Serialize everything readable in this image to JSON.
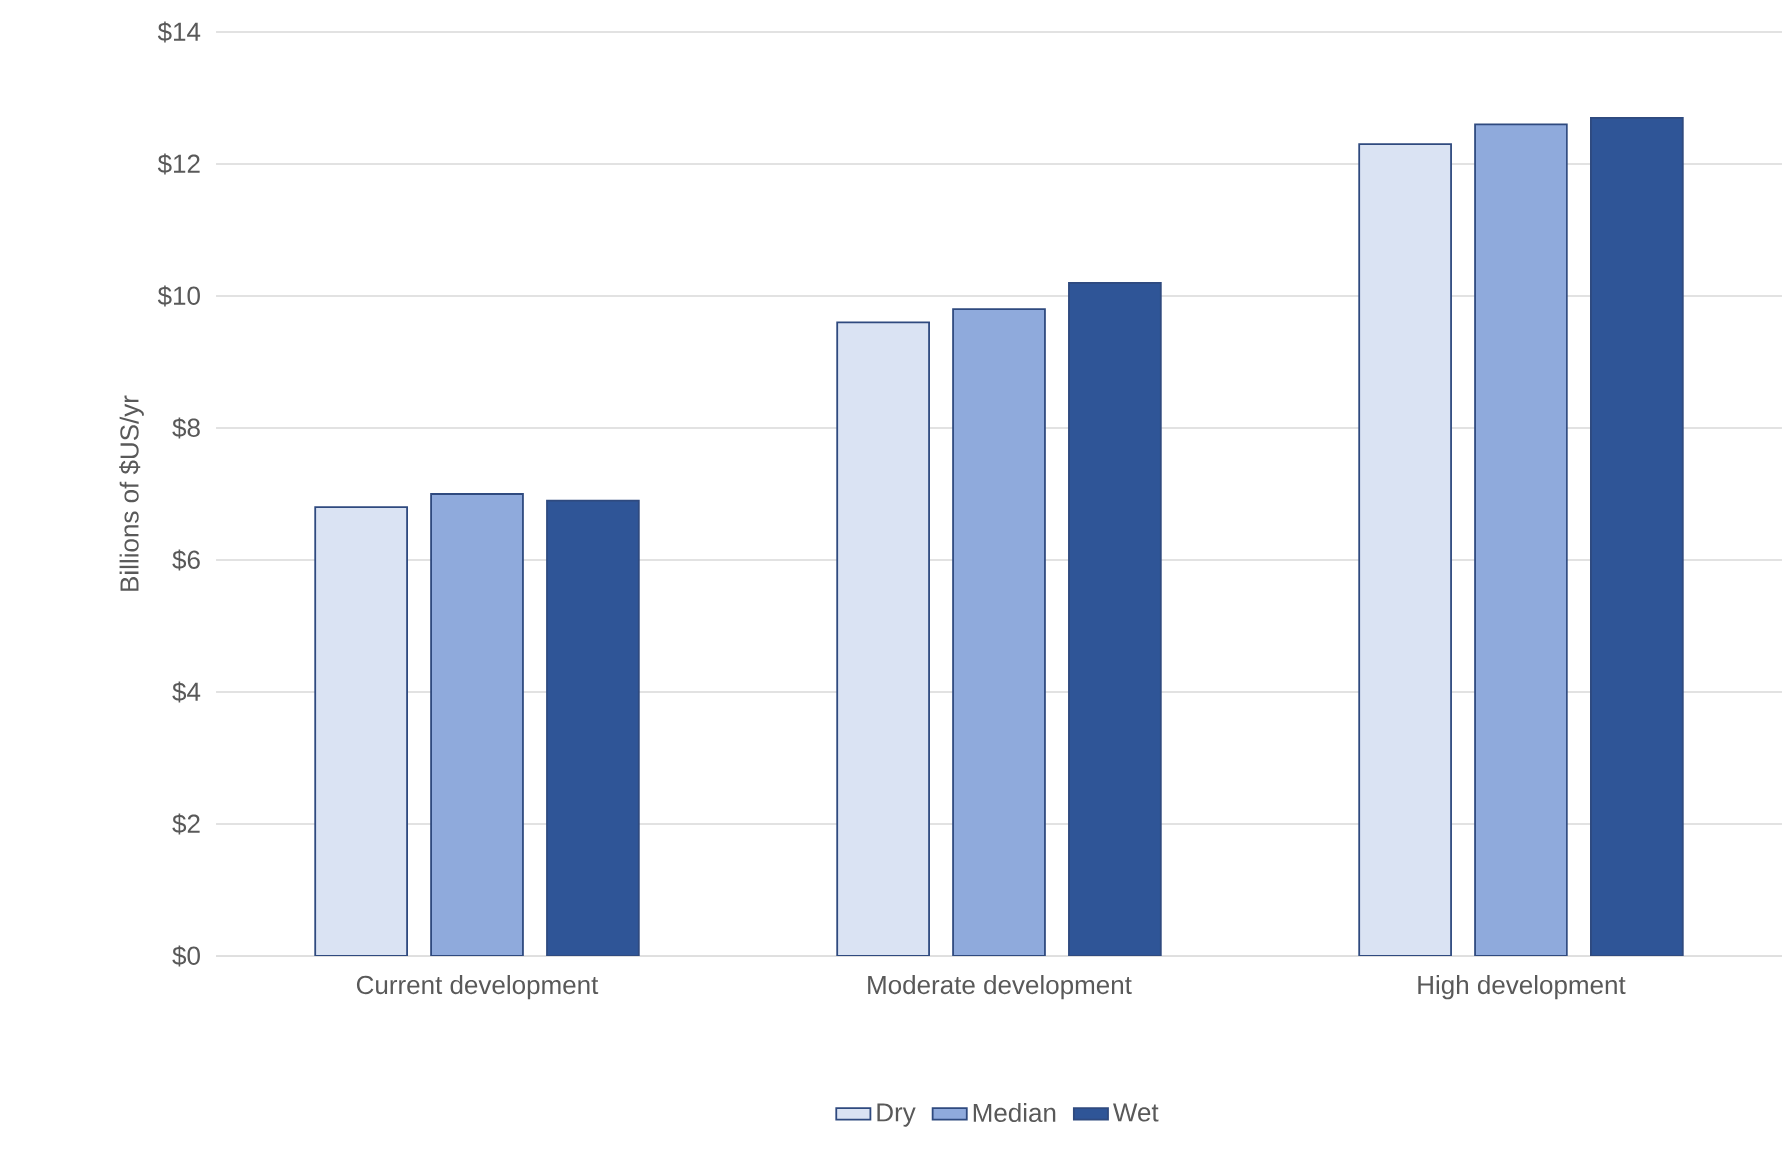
{
  "chart_data": {
    "type": "bar",
    "ylabel": "Billions of $US/yr",
    "categories": [
      "Current development",
      "Moderate development",
      "High development"
    ],
    "series": [
      {
        "name": "Dry",
        "color": "#dae3f3",
        "values": [
          6.8,
          9.6,
          12.3
        ]
      },
      {
        "name": "Median",
        "color": "#8faadc",
        "values": [
          7.0,
          9.8,
          12.6
        ]
      },
      {
        "name": "Wet",
        "color": "#2f5597",
        "values": [
          6.9,
          10.2,
          12.7
        ]
      }
    ],
    "ylim": [
      0,
      14
    ],
    "yticks": [
      {
        "value": 0,
        "label": "$0"
      },
      {
        "value": 2,
        "label": "$2"
      },
      {
        "value": 4,
        "label": "$4"
      },
      {
        "value": 6,
        "label": "$6"
      },
      {
        "value": 8,
        "label": "$8"
      },
      {
        "value": 10,
        "label": "$10"
      },
      {
        "value": 12,
        "label": "$12"
      },
      {
        "value": 14,
        "label": "$14"
      }
    ],
    "grid": "y",
    "legend": "bottom"
  }
}
